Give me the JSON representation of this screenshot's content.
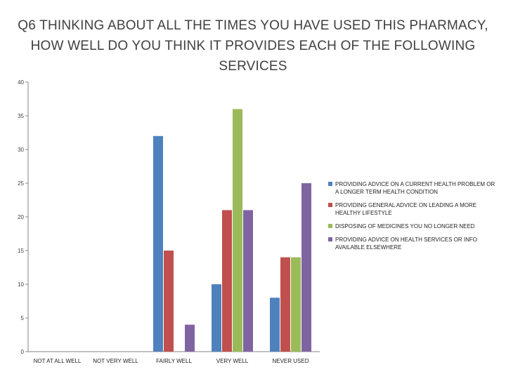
{
  "chart_data": {
    "type": "bar",
    "title": "Q6 THINKING ABOUT ALL THE TIMES YOU HAVE USED THIS PHARMACY, HOW WELL DO YOU THINK IT PROVIDES EACH OF THE FOLLOWING SERVICES",
    "xlabel": "",
    "ylabel": "",
    "ylim": [
      0,
      40
    ],
    "yticks": [
      "0",
      "5",
      "10",
      "15",
      "20",
      "25",
      "30",
      "35",
      "40"
    ],
    "grid": false,
    "legend_position": "right",
    "categories": [
      "NOT AT ALL WELL",
      "NOT VERY WELL",
      "FAIRLY WELL",
      "VERY WELL",
      "NEVER USED"
    ],
    "series": [
      {
        "name": "PROVIDING ADVICE ON A CURRENT HEALTH PROBLEM OR A LONGER TERM HEALTH CONDITION",
        "color": "#4f81bd",
        "values": [
          0,
          0,
          32,
          10,
          8
        ]
      },
      {
        "name": "PROVIDING GENERAL ADVICE ON LEADING A MORE HEALTHY LIFESTYLE",
        "color": "#c0504d",
        "values": [
          0,
          0,
          15,
          21,
          14
        ]
      },
      {
        "name": "DISPOSING OF MEDICINES YOU NO LONGER NEED",
        "color": "#9bbb59",
        "values": [
          0,
          0,
          0,
          36,
          14
        ]
      },
      {
        "name": "PROVIDING ADVICE ON HEALTH SERVICES OR INFO AVAILABLE ELSEWHERE",
        "color": "#8064a2",
        "values": [
          0,
          0,
          4,
          21,
          25
        ]
      }
    ]
  }
}
